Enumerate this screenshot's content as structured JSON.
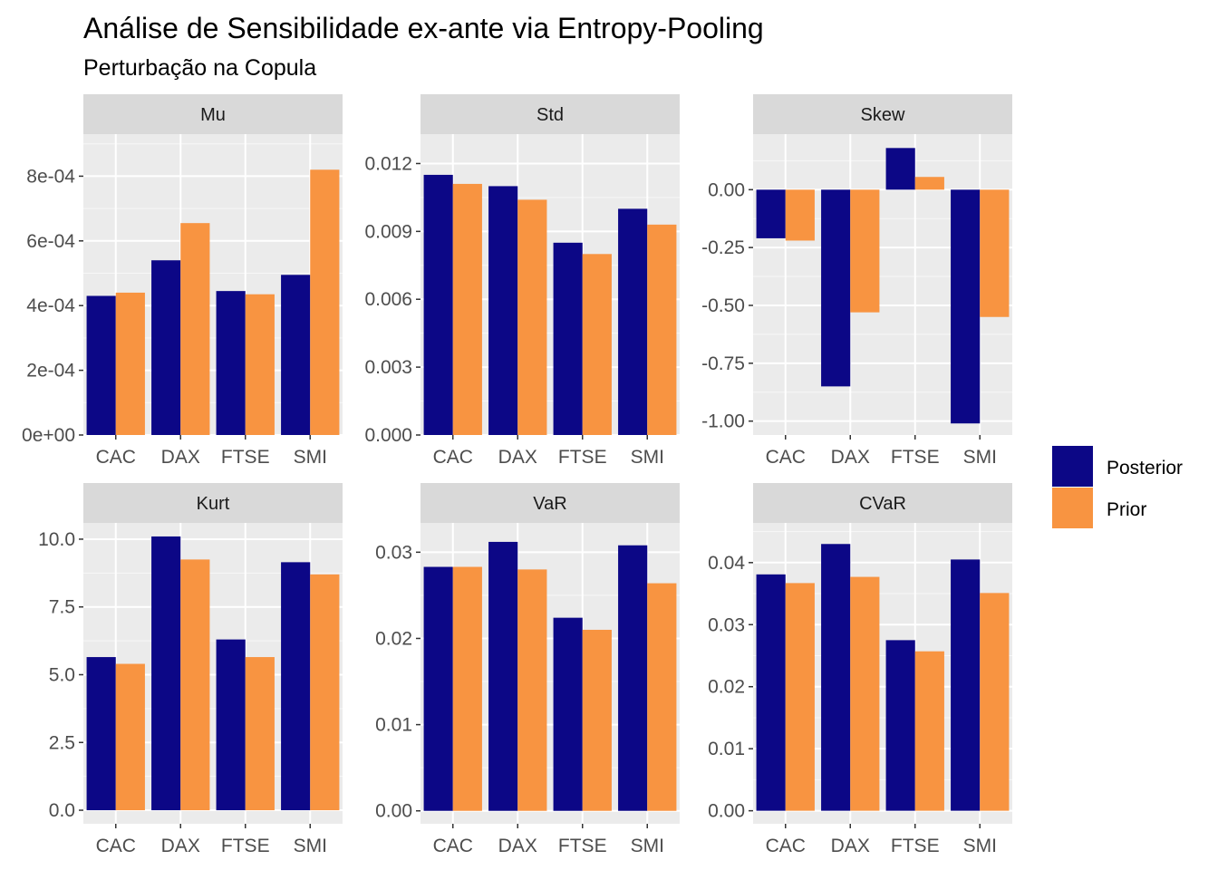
{
  "title": "Análise de Sensibilidade ex-ante via Entropy-Pooling",
  "subtitle": "Perturbação na Copula",
  "chart_data": {
    "type": "bar",
    "layout": "facet-grid 2x3, free y scales",
    "grid": true,
    "legend_position": "right",
    "categories": [
      "CAC",
      "DAX",
      "FTSE",
      "SMI"
    ],
    "series_names": [
      "Posterior",
      "Prior"
    ],
    "colors": {
      "Posterior": "#0C0786",
      "Prior": "#F89441"
    },
    "panels": [
      {
        "name": "Mu",
        "ylim": [
          0,
          0.00093
        ],
        "ticks": [
          0,
          0.0002,
          0.0004,
          0.0006,
          0.0008
        ],
        "tick_labels": [
          "0e+00",
          "2e-04",
          "4e-04",
          "6e-04",
          "8e-04"
        ],
        "series": [
          {
            "name": "Posterior",
            "values": [
              0.00043,
              0.00054,
              0.000445,
              0.000495
            ]
          },
          {
            "name": "Prior",
            "values": [
              0.00044,
              0.000655,
              0.000435,
              0.00082
            ]
          }
        ]
      },
      {
        "name": "Std",
        "ylim": [
          0,
          0.0133
        ],
        "ticks": [
          0,
          0.003,
          0.006,
          0.009,
          0.012
        ],
        "tick_labels": [
          "0.000",
          "0.003",
          "0.006",
          "0.009",
          "0.012"
        ],
        "series": [
          {
            "name": "Posterior",
            "values": [
              0.0115,
              0.011,
              0.0085,
              0.01
            ]
          },
          {
            "name": "Prior",
            "values": [
              0.0111,
              0.0104,
              0.008,
              0.0093
            ]
          }
        ]
      },
      {
        "name": "Skew",
        "ylim": [
          -1.06,
          0.24
        ],
        "ticks": [
          -1,
          -0.75,
          -0.5,
          -0.25,
          0
        ],
        "tick_labels": [
          "-1.00",
          "-0.75",
          "-0.50",
          "-0.25",
          "0.00"
        ],
        "series": [
          {
            "name": "Posterior",
            "values": [
              -0.21,
              -0.85,
              0.18,
              -1.01
            ]
          },
          {
            "name": "Prior",
            "values": [
              -0.22,
              -0.53,
              0.055,
              -0.55
            ]
          }
        ]
      },
      {
        "name": "Kurt",
        "ylim": [
          -0.5,
          10.6
        ],
        "ticks": [
          0,
          2.5,
          5,
          7.5,
          10
        ],
        "tick_labels": [
          "0.0",
          "2.5",
          "5.0",
          "7.5",
          "10.0"
        ],
        "series": [
          {
            "name": "Posterior",
            "values": [
              5.65,
              10.1,
              6.3,
              9.15
            ]
          },
          {
            "name": "Prior",
            "values": [
              5.4,
              9.25,
              5.65,
              8.7
            ]
          }
        ]
      },
      {
        "name": "VaR",
        "ylim": [
          -0.0015,
          0.0334
        ],
        "ticks": [
          0,
          0.01,
          0.02,
          0.03
        ],
        "tick_labels": [
          "0.00",
          "0.01",
          "0.02",
          "0.03"
        ],
        "series": [
          {
            "name": "Posterior",
            "values": [
              0.0283,
              0.0312,
              0.0224,
              0.0308
            ]
          },
          {
            "name": "Prior",
            "values": [
              0.0283,
              0.028,
              0.021,
              0.0264
            ]
          }
        ]
      },
      {
        "name": "CVaR",
        "ylim": [
          -0.0021,
          0.0464
        ],
        "ticks": [
          0,
          0.01,
          0.02,
          0.03,
          0.04
        ],
        "tick_labels": [
          "0.00",
          "0.01",
          "0.02",
          "0.03",
          "0.04"
        ],
        "series": [
          {
            "name": "Posterior",
            "values": [
              0.0381,
              0.043,
              0.0275,
              0.0405
            ]
          },
          {
            "name": "Prior",
            "values": [
              0.0367,
              0.0377,
              0.0257,
              0.0351
            ]
          }
        ]
      }
    ]
  }
}
